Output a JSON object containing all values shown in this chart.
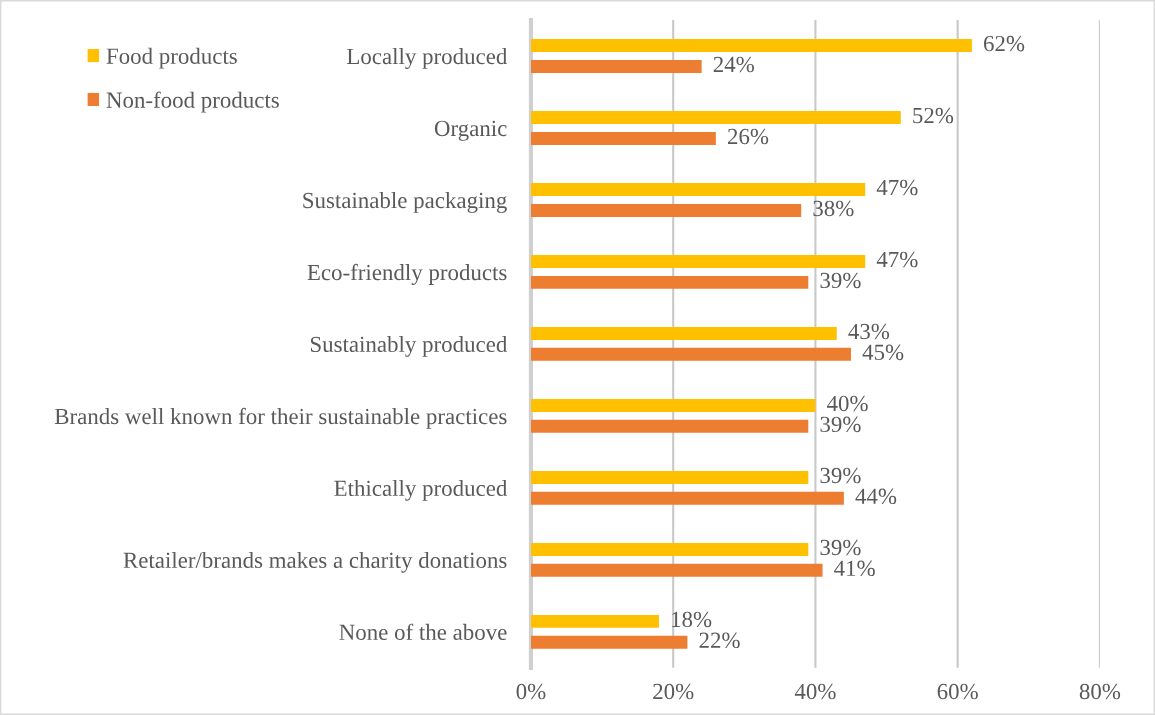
{
  "chart_data": {
    "type": "bar",
    "orientation": "horizontal",
    "categories": [
      "Locally produced",
      "Organic",
      "Sustainable packaging",
      "Eco-friendly products",
      "Sustainably produced",
      "Brands well known for their sustainable practices",
      "Ethically produced",
      "Retailer/brands makes a charity donations",
      "None of the above"
    ],
    "series": [
      {
        "name": "Food products",
        "color": "#ffc000",
        "values": [
          62,
          52,
          47,
          47,
          43,
          40,
          39,
          39,
          18
        ],
        "value_labels": [
          "62%",
          "52%",
          "47%",
          "47%",
          "43%",
          "40%",
          "39%",
          "39%",
          "18%"
        ]
      },
      {
        "name": "Non-food products",
        "color": "#ed7d31",
        "values": [
          24,
          26,
          38,
          39,
          45,
          39,
          44,
          41,
          22
        ],
        "value_labels": [
          "24%",
          "26%",
          "38%",
          "39%",
          "45%",
          "39%",
          "44%",
          "41%",
          "22%"
        ]
      }
    ],
    "xlim": [
      0,
      80
    ],
    "xticks": [
      {
        "value": 0,
        "label": "0%"
      },
      {
        "value": 20,
        "label": "20%"
      },
      {
        "value": 40,
        "label": "40%"
      },
      {
        "value": 60,
        "label": "60%"
      },
      {
        "value": 80,
        "label": "80%"
      }
    ],
    "grid": "x",
    "legend": "top left"
  }
}
